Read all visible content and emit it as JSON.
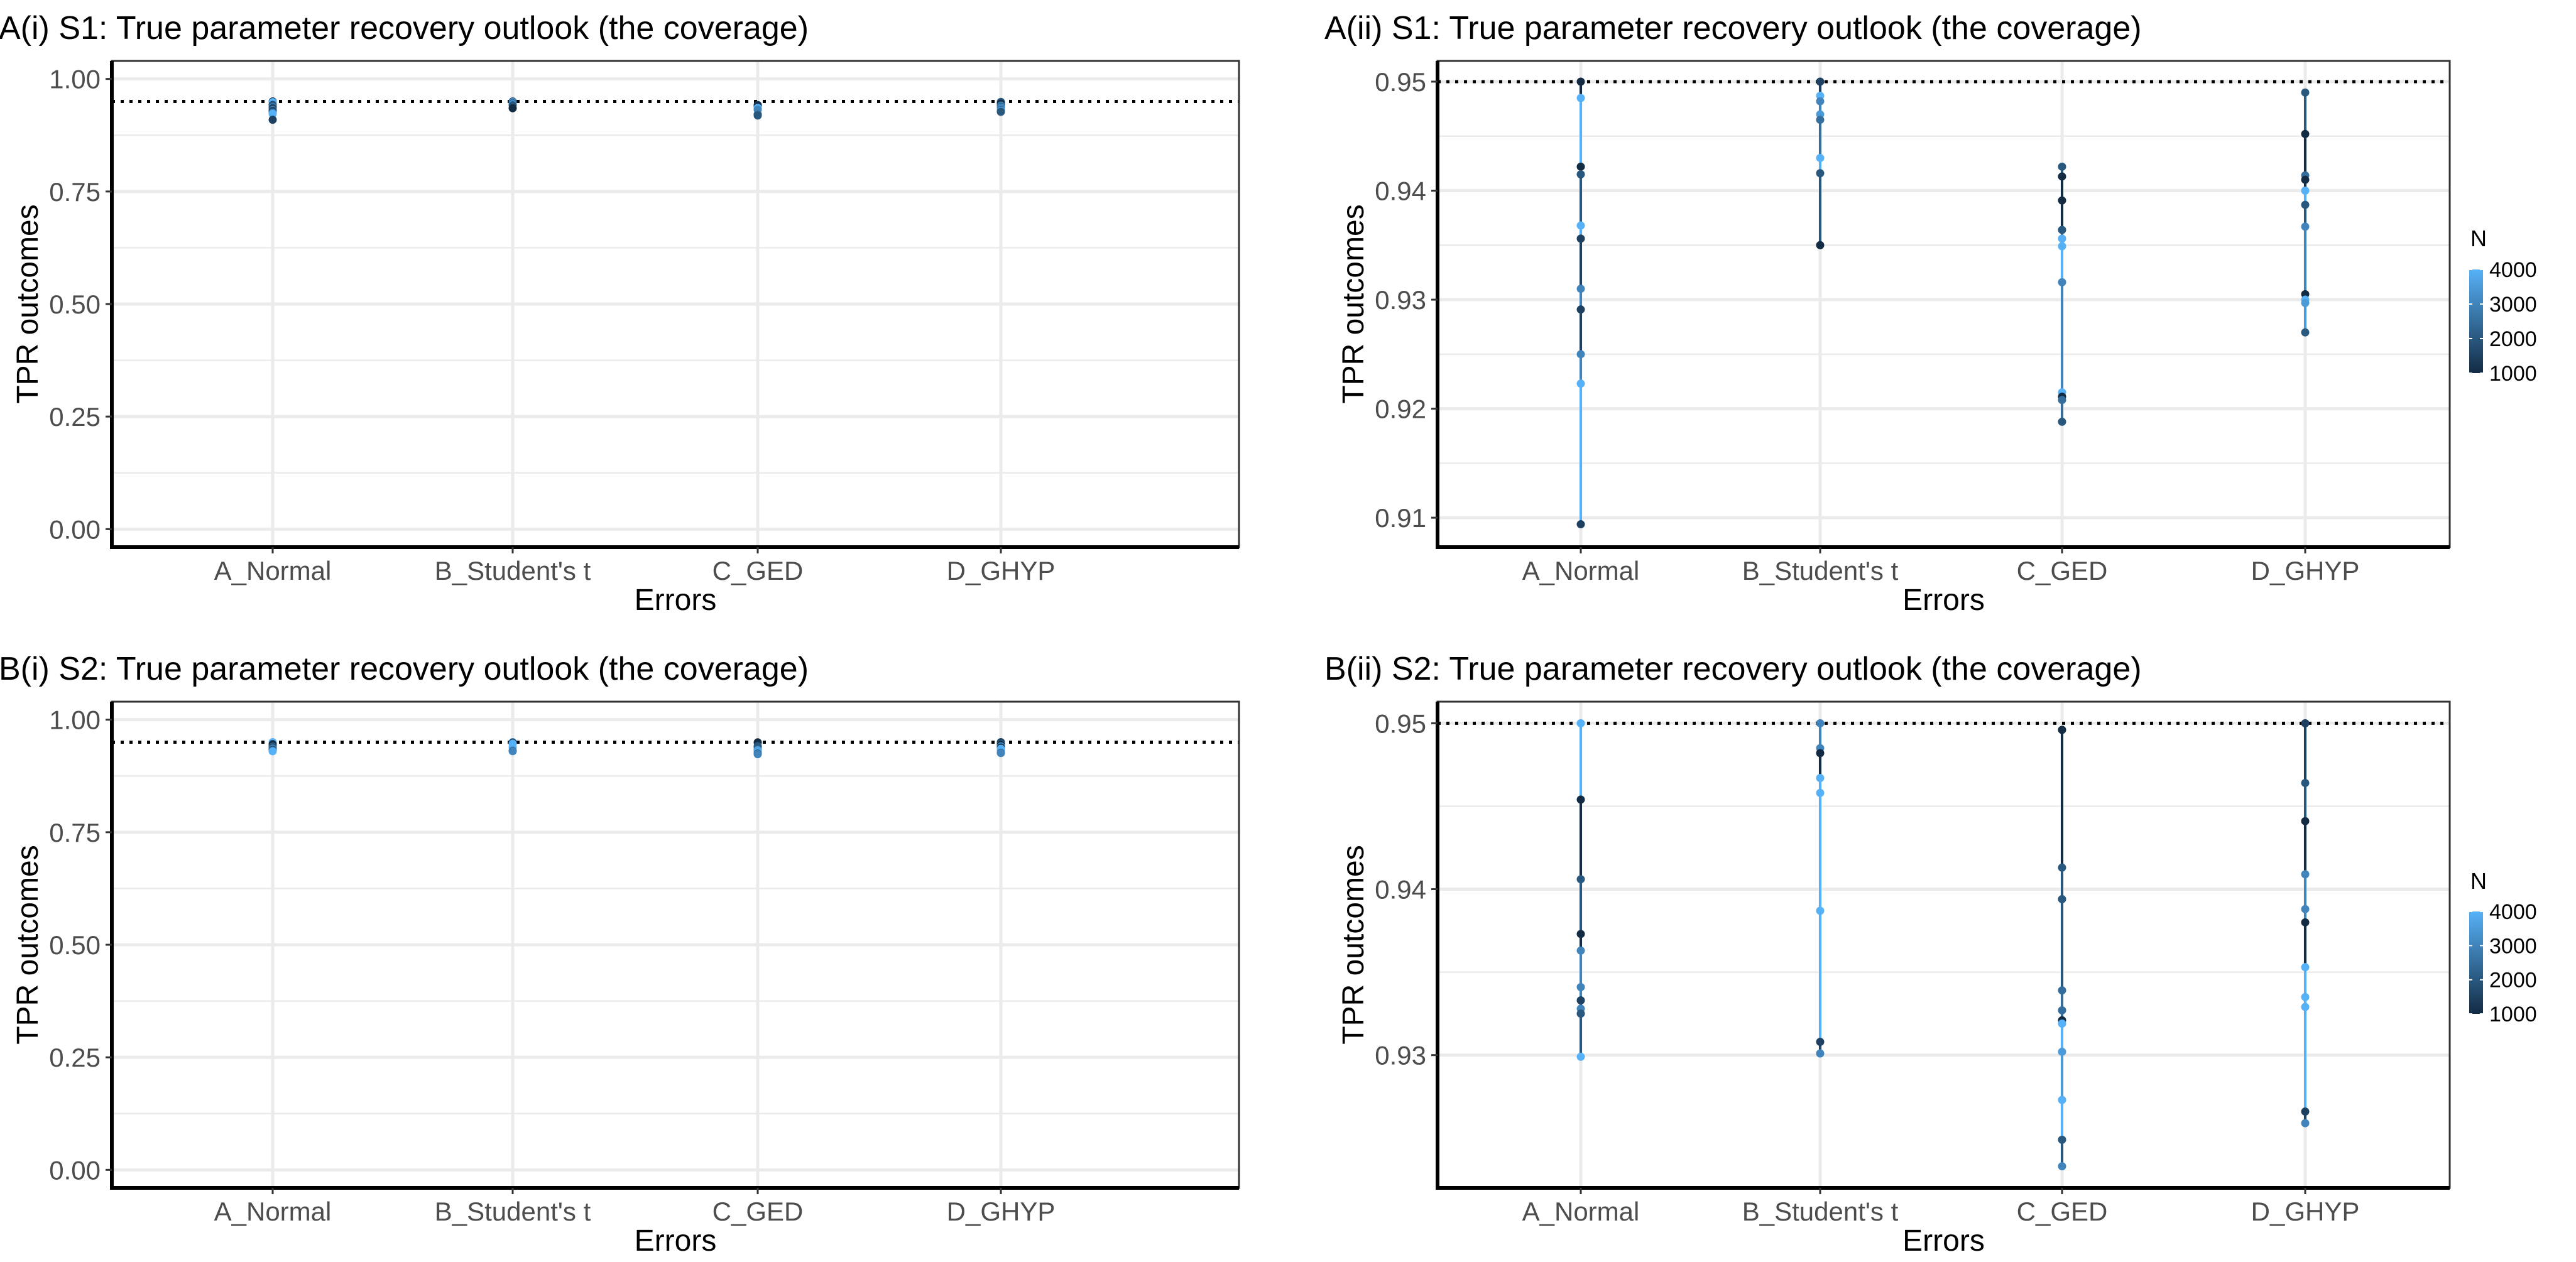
{
  "chart_data": [
    {
      "id": "Ai",
      "type": "scatter",
      "title": "A(i) S1: True parameter recovery outlook (the coverage)",
      "xlabel": "Errors",
      "ylabel": "TPR outcomes",
      "ylim": [
        -0.04,
        1.04
      ],
      "yticks": [
        0,
        0.25,
        0.5,
        0.75,
        1
      ],
      "ytick_labels": [
        "0.00",
        "0.25",
        "0.50",
        "0.75",
        "1.00"
      ],
      "ref_line": 0.95,
      "data_ref": "S1"
    },
    {
      "id": "Aii",
      "type": "scatter",
      "title": "A(ii) S1: True parameter recovery outlook (the coverage)",
      "xlabel": "Errors",
      "ylabel": "TPR outcomes",
      "ylim": [
        0.9073,
        0.9519
      ],
      "yticks": [
        0.91,
        0.92,
        0.93,
        0.94,
        0.95
      ],
      "ytick_labels": [
        "0.91",
        "0.92",
        "0.93",
        "0.94",
        "0.95"
      ],
      "ref_line": 0.95,
      "data_ref": "S1",
      "legend": {
        "title": "N",
        "labels": [
          "4000",
          "3000",
          "2000",
          "1000"
        ],
        "range": [
          1000,
          4000
        ],
        "placement": "right"
      }
    },
    {
      "id": "Bi",
      "type": "scatter",
      "title": "B(i) S2: True parameter recovery outlook (the coverage)",
      "xlabel": "Errors",
      "ylabel": "TPR outcomes",
      "ylim": [
        -0.04,
        1.04
      ],
      "yticks": [
        0,
        0.25,
        0.5,
        0.75,
        1
      ],
      "ytick_labels": [
        "0.00",
        "0.25",
        "0.50",
        "0.75",
        "1.00"
      ],
      "ref_line": 0.95,
      "data_ref": "S2"
    },
    {
      "id": "Bii",
      "type": "scatter",
      "title": "B(ii) S2: True parameter recovery outlook (the coverage)",
      "xlabel": "Errors",
      "ylabel": "TPR outcomes",
      "ylim": [
        0.922,
        0.9513
      ],
      "yticks": [
        0.93,
        0.94,
        0.95
      ],
      "ytick_labels": [
        "0.93",
        "0.94",
        "0.95"
      ],
      "ref_line": 0.95,
      "data_ref": "S2",
      "legend": {
        "title": "N",
        "labels": [
          "4000",
          "3000",
          "2000",
          "1000"
        ],
        "range": [
          1000,
          4000
        ],
        "placement": "right"
      }
    }
  ],
  "categories": [
    "A_Normal",
    "B_Student's t",
    "C_GED",
    "D_GHYP"
  ],
  "series": {
    "S1": [
      {
        "y": [
          0.95,
          0.9485,
          0.9422,
          0.9415,
          0.9368,
          0.9356,
          0.931,
          0.9291,
          0.925,
          0.9223,
          0.9094
        ],
        "N": [
          1000,
          4000,
          1000,
          2000,
          4000,
          1500,
          3000,
          1500,
          3000,
          4000,
          1500
        ]
      },
      {
        "y": [
          0.95,
          0.9487,
          0.9482,
          0.947,
          0.9465,
          0.943,
          0.9416,
          0.935
        ],
        "N": [
          1500,
          4000,
          3000,
          3500,
          2500,
          4000,
          2000,
          1000
        ]
      },
      {
        "y": [
          0.9422,
          0.9413,
          0.9391,
          0.9364,
          0.9356,
          0.9349,
          0.9316,
          0.9215,
          0.9211,
          0.9208,
          0.9188
        ],
        "N": [
          2000,
          1000,
          1000,
          2000,
          4000,
          4000,
          3000,
          4000,
          1000,
          2500,
          2000
        ]
      },
      {
        "y": [
          0.949,
          0.9452,
          0.9414,
          0.941,
          0.94,
          0.9387,
          0.9367,
          0.9305,
          0.93,
          0.9297,
          0.927
        ],
        "N": [
          2000,
          1000,
          2500,
          1000,
          4000,
          2000,
          3000,
          1000,
          4000,
          3500,
          2000
        ]
      }
    ],
    "S2": [
      {
        "y": [
          0.95,
          0.9454,
          0.9406,
          0.9373,
          0.9363,
          0.9341,
          0.9333,
          0.9328,
          0.9325,
          0.9299
        ],
        "N": [
          4000,
          1000,
          2000,
          1000,
          3000,
          3000,
          1500,
          3000,
          2000,
          4000
        ]
      },
      {
        "y": [
          0.95,
          0.9485,
          0.9482,
          0.9467,
          0.9458,
          0.9387,
          0.9308,
          0.9301
        ],
        "N": [
          3000,
          3000,
          1000,
          4000,
          4000,
          4000,
          1500,
          3000
        ]
      },
      {
        "y": [
          0.9496,
          0.9413,
          0.9394,
          0.9339,
          0.9327,
          0.9321,
          0.9319,
          0.9302,
          0.9273,
          0.9249,
          0.9233
        ],
        "N": [
          1000,
          2000,
          2000,
          2500,
          2500,
          1000,
          4000,
          3500,
          4000,
          2000,
          3000
        ]
      },
      {
        "y": [
          0.95,
          0.9464,
          0.9441,
          0.9409,
          0.9388,
          0.938,
          0.9353,
          0.9335,
          0.9329,
          0.9266,
          0.9259
        ],
        "N": [
          1500,
          2000,
          1000,
          3000,
          3000,
          1000,
          4000,
          4000,
          4000,
          1500,
          3000
        ]
      }
    ]
  },
  "colors": {
    "low": "#132B43",
    "high": "#56B1F7",
    "grid": "#ebebeb",
    "axis": "#000000"
  }
}
